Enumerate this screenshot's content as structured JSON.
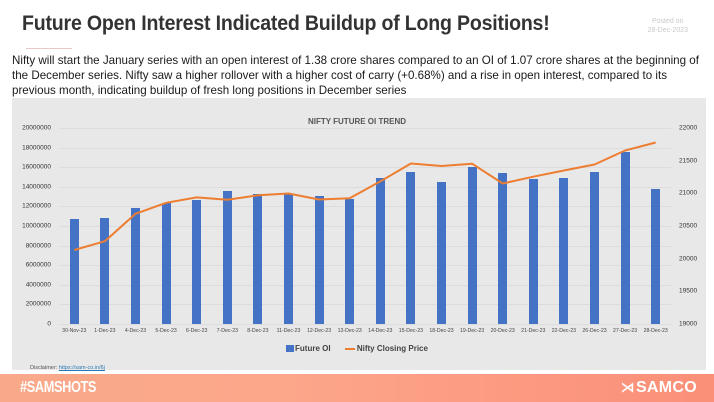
{
  "header": {
    "title": "Future Open Interest Indicated Buildup of Long Positions!",
    "posted_label": "Posted on",
    "posted_date": "28-Dec-2023"
  },
  "description": "Nifty will start the January series with an open interest of 1.38 crore shares compared to an OI of 1.07 crore shares at the beginning of the December series. Nifty saw a higher rollover with a higher cost of carry (+0.68%) and a rise in open interest, compared to its previous month, indicating buildup of fresh long positions in December series",
  "chart_data": {
    "type": "bar",
    "title": "NIFTY FUTURE OI TREND",
    "xlabel": "",
    "ylabel": "",
    "categories": [
      "30-Nov-23",
      "1-Dec-23",
      "4-Dec-23",
      "5-Dec-23",
      "6-Dec-23",
      "7-Dec-23",
      "8-Dec-23",
      "11-Dec-23",
      "12-Dec-23",
      "13-Dec-23",
      "14-Dec-23",
      "15-Dec-23",
      "18-Dec-23",
      "19-Dec-23",
      "20-Dec-23",
      "21-Dec-23",
      "22-Dec-23",
      "26-Dec-23",
      "27-Dec-23",
      "28-Dec-23"
    ],
    "series": [
      {
        "name": "Future OI",
        "type": "bar",
        "axis": "left",
        "color": "#4472c4",
        "values": [
          10700000,
          10800000,
          11800000,
          12300000,
          12700000,
          13600000,
          13300000,
          13300000,
          13100000,
          12800000,
          14900000,
          15500000,
          14500000,
          16000000,
          15400000,
          14800000,
          14900000,
          15500000,
          17600000,
          13800000
        ]
      },
      {
        "name": "Nifty Closing Price",
        "type": "line",
        "axis": "right",
        "color": "#ed7d31",
        "values": [
          20133,
          20268,
          20687,
          20855,
          20938,
          20901,
          20970,
          20997,
          20906,
          20926,
          21183,
          21457,
          21418,
          21453,
          21150,
          21255,
          21349,
          21441,
          21655,
          21778
        ]
      }
    ],
    "ylim": [
      0,
      20000000
    ],
    "y_ticks": [
      "0",
      "2000000",
      "4000000",
      "6000000",
      "8000000",
      "10000000",
      "12000000",
      "14000000",
      "16000000",
      "18000000",
      "20000000"
    ],
    "y2lim": [
      19000,
      22000
    ],
    "y2_ticks": [
      "19000",
      "19500",
      "20000",
      "20500",
      "21000",
      "21500",
      "22000"
    ],
    "legend": [
      "Future OI",
      "Nifty Closing Price"
    ],
    "legend_position": "bottom",
    "grid": true
  },
  "disclaimer": {
    "label": "Disclaimer:",
    "link_text": "https://sam-co.in/6j"
  },
  "footer": {
    "hashtag": "#SAMSHOTS",
    "brand": "SAMCO",
    "brand_logo": "ℌ"
  }
}
